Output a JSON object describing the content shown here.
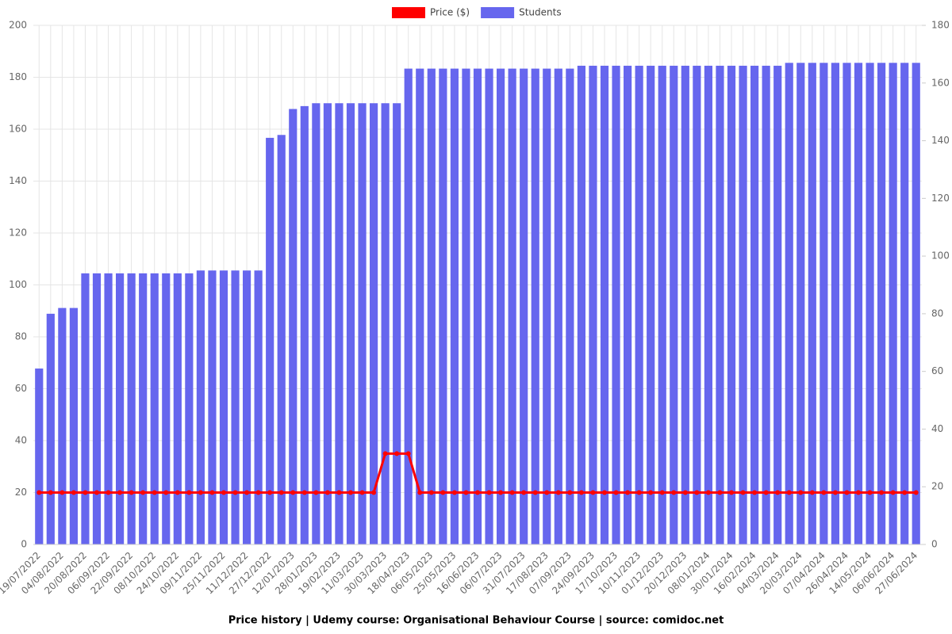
{
  "chart_data": {
    "type": "bar-line",
    "title": "Price history | Udemy course: Organisational Behaviour Course | source: comidoc.net",
    "categories": [
      "19/07/2022",
      null,
      "04/08/2022",
      null,
      "20/08/2022",
      null,
      "06/09/2022",
      null,
      "22/09/2022",
      null,
      "08/10/2022",
      null,
      "24/10/2022",
      null,
      "09/11/2022",
      null,
      "25/11/2022",
      null,
      "11/12/2022",
      null,
      "27/12/2022",
      null,
      "12/01/2023",
      null,
      "28/01/2023",
      null,
      "19/02/2023",
      null,
      "11/03/2023",
      null,
      "30/03/2023",
      null,
      "18/04/2023",
      null,
      "06/05/2023",
      null,
      "25/05/2023",
      null,
      "16/06/2023",
      null,
      "06/07/2023",
      null,
      "31/07/2023",
      null,
      "17/08/2023",
      null,
      "07/09/2023",
      null,
      "24/09/2023",
      null,
      "17/10/2023",
      null,
      "10/11/2023",
      null,
      "01/12/2023",
      null,
      "20/12/2023",
      null,
      "08/01/2024",
      null,
      "30/01/2024",
      null,
      "16/02/2024",
      null,
      "04/03/2024",
      null,
      "20/03/2024",
      null,
      "07/04/2024",
      null,
      "26/04/2024",
      null,
      "14/05/2024",
      null,
      "06/06/2024",
      null,
      "27/06/2024"
    ],
    "series": [
      {
        "name": "Price ($)",
        "color": "#ff0000",
        "kind": "line",
        "axis": "y",
        "values": [
          20,
          20,
          20,
          20,
          20,
          20,
          20,
          20,
          20,
          20,
          20,
          20,
          20,
          20,
          20,
          20,
          20,
          20,
          20,
          20,
          20,
          20,
          20,
          20,
          20,
          20,
          20,
          20,
          20,
          20,
          35,
          35,
          35,
          20,
          20,
          20,
          20,
          20,
          20,
          20,
          20,
          20,
          20,
          20,
          20,
          20,
          20,
          20,
          20,
          20,
          20,
          20,
          20,
          20,
          20,
          20,
          20,
          20,
          20,
          20,
          20,
          20,
          20,
          20,
          20,
          20,
          20,
          20,
          20,
          20,
          20,
          20,
          20,
          20,
          20,
          20,
          20
        ]
      },
      {
        "name": "Students",
        "color": "#6666ee",
        "kind": "bar",
        "axis": "y2",
        "values": [
          61,
          80,
          82,
          82,
          94,
          94,
          94,
          94,
          94,
          94,
          94,
          94,
          94,
          94,
          95,
          95,
          95,
          95,
          95,
          95,
          141,
          142,
          151,
          152,
          153,
          153,
          153,
          153,
          153,
          153,
          153,
          153,
          165,
          165,
          165,
          165,
          165,
          165,
          165,
          165,
          165,
          165,
          165,
          165,
          165,
          165,
          165,
          166,
          166,
          166,
          166,
          166,
          166,
          166,
          166,
          166,
          166,
          166,
          166,
          166,
          166,
          166,
          166,
          166,
          166,
          167,
          167,
          167,
          167,
          167,
          167,
          167,
          167,
          167,
          167,
          167,
          167
        ]
      }
    ],
    "ylim": [
      0,
      200
    ],
    "yticks": [
      0,
      20,
      40,
      60,
      80,
      100,
      120,
      140,
      160,
      180,
      200
    ],
    "y2lim": [
      0,
      180
    ],
    "y2ticks": [
      0,
      20,
      40,
      60,
      80,
      100,
      120,
      140,
      160,
      180
    ],
    "grid": true,
    "legend": "top"
  }
}
